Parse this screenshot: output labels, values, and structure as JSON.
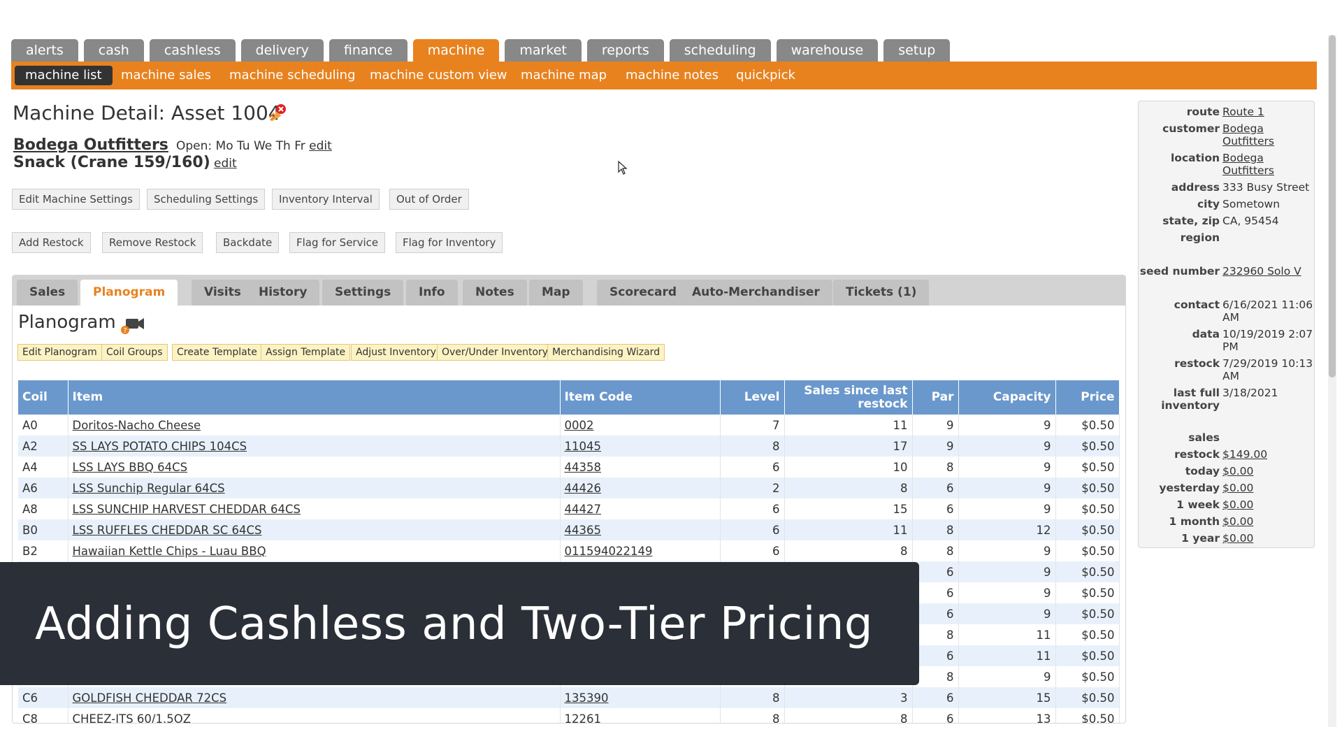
{
  "main_tabs": [
    "alerts",
    "cash",
    "cashless",
    "delivery",
    "finance",
    "machine",
    "market",
    "reports",
    "scheduling",
    "warehouse",
    "setup"
  ],
  "sub_nav": [
    "machine list",
    "machine sales",
    "machine scheduling",
    "machine custom view",
    "machine map",
    "machine notes",
    "quickpick"
  ],
  "header": {
    "title": "Machine Detail: Asset 1004",
    "customer": "Bodega Outfitters",
    "open_label": "Open: Mo Tu We Th Fr",
    "edit": "edit",
    "machine_type": "Snack (Crane 159/160)"
  },
  "action_buttons_row1": [
    "Edit Machine Settings",
    "Scheduling Settings",
    "Inventory Interval",
    "Out of Order"
  ],
  "action_buttons_row2": [
    "Add Restock",
    "Remove Restock",
    "Backdate",
    "Flag for Service",
    "Flag for Inventory"
  ],
  "detail_tabs": [
    "Sales",
    "Planogram",
    "Visits",
    "History",
    "Settings",
    "Info",
    "Notes",
    "Map",
    "Scorecard",
    "Auto-Merchandiser",
    "Tickets (1)"
  ],
  "planogram": {
    "title": "Planogram",
    "buttons": [
      "Edit Planogram",
      "Coil Groups",
      "Create Template",
      "Assign Template",
      "Adjust Inventory",
      "Over/Under Inventory",
      "Merchandising Wizard"
    ],
    "columns": {
      "coil": "Coil",
      "item": "Item",
      "item_code": "Item Code",
      "level": "Level",
      "sales": "Sales since last restock",
      "par": "Par",
      "capacity": "Capacity",
      "price": "Price"
    },
    "rows": [
      {
        "coil": "A0",
        "item": "Doritos-Nacho Cheese",
        "code": "0002",
        "level": "7",
        "sales": "11",
        "par": "9",
        "capacity": "9",
        "price": "$0.50"
      },
      {
        "coil": "A2",
        "item": "SS LAYS POTATO CHIPS 104CS",
        "code": "11045",
        "level": "8",
        "sales": "17",
        "par": "9",
        "capacity": "9",
        "price": "$0.50"
      },
      {
        "coil": "A4",
        "item": "LSS LAYS BBQ 64CS",
        "code": "44358",
        "level": "6",
        "sales": "10",
        "par": "8",
        "capacity": "9",
        "price": "$0.50"
      },
      {
        "coil": "A6",
        "item": "LSS Sunchip Regular 64CS",
        "code": "44426",
        "level": "2",
        "sales": "8",
        "par": "6",
        "capacity": "9",
        "price": "$0.50"
      },
      {
        "coil": "A8",
        "item": "LSS SUNCHIP HARVEST CHEDDAR 64CS",
        "code": "44427",
        "level": "6",
        "sales": "15",
        "par": "6",
        "capacity": "9",
        "price": "$0.50"
      },
      {
        "coil": "B0",
        "item": "LSS RUFFLES CHEDDAR SC 64CS",
        "code": "44365",
        "level": "6",
        "sales": "11",
        "par": "8",
        "capacity": "12",
        "price": "$0.50"
      },
      {
        "coil": "B2",
        "item": "Hawaiian Kettle Chips - Luau BBQ",
        "code": "011594022149",
        "level": "6",
        "sales": "8",
        "par": "8",
        "capacity": "9",
        "price": "$0.50"
      },
      {
        "coil": "",
        "item": "",
        "code": "",
        "level": "",
        "sales": "",
        "par": "6",
        "capacity": "9",
        "price": "$0.50"
      },
      {
        "coil": "",
        "item": "",
        "code": "",
        "level": "",
        "sales": "",
        "par": "6",
        "capacity": "9",
        "price": "$0.50"
      },
      {
        "coil": "",
        "item": "",
        "code": "",
        "level": "",
        "sales": "",
        "par": "6",
        "capacity": "9",
        "price": "$0.50"
      },
      {
        "coil": "",
        "item": "",
        "code": "",
        "level": "",
        "sales": "",
        "par": "8",
        "capacity": "11",
        "price": "$0.50"
      },
      {
        "coil": "",
        "item": "",
        "code": "",
        "level": "",
        "sales": "",
        "par": "6",
        "capacity": "11",
        "price": "$0.50"
      },
      {
        "coil": "",
        "item": "",
        "code": "",
        "level": "",
        "sales": "",
        "par": "8",
        "capacity": "9",
        "price": "$0.50"
      },
      {
        "coil": "C6",
        "item": "GOLDFISH CHEDDAR 72CS",
        "code": "135390",
        "level": "8",
        "sales": "3",
        "par": "6",
        "capacity": "15",
        "price": "$0.50"
      },
      {
        "coil": "C8",
        "item": "CHEEZ-ITS 60/1.5OZ",
        "code": "12261",
        "level": "8",
        "sales": "8",
        "par": "6",
        "capacity": "13",
        "price": "$0.50"
      }
    ]
  },
  "info": {
    "route_label": "route",
    "route": "Route 1",
    "customer_label": "customer",
    "customer": "Bodega Outfitters",
    "location_label": "location",
    "location": "Bodega Outfitters",
    "address_label": "address",
    "address": "333 Busy Street",
    "city_label": "city",
    "city": "Sometown",
    "statezip_label": "state, zip",
    "statezip": "CA, 95454",
    "region_label": "region",
    "seed_label": "seed number",
    "seed": "232960 Solo V",
    "contact_label": "contact",
    "contact": "6/16/2021 11:06 AM",
    "data_label": "data",
    "data": "10/19/2019 2:07 PM",
    "restock_label": "restock",
    "restock": "7/29/2019 10:13 AM",
    "lastfull_label": "last full inventory",
    "lastfull": "3/18/2021",
    "sales_label": "sales",
    "s_restock_label": "restock",
    "s_restock": "$149.00",
    "today_label": "today",
    "today": "$0.00",
    "yesterday_label": "yesterday",
    "yesterday": "$0.00",
    "week_label": "1 week",
    "week": "$0.00",
    "month_label": "1 month",
    "month": "$0.00",
    "year_label": "1 year",
    "year": "$0.00"
  },
  "overlay": {
    "caption": "Adding Cashless and Two-Tier Pricing"
  },
  "colors": {
    "accent": "#e8821f",
    "tab_gray": "#888888",
    "table_header": "#6a98cc",
    "overlay": "#2b2f38"
  }
}
